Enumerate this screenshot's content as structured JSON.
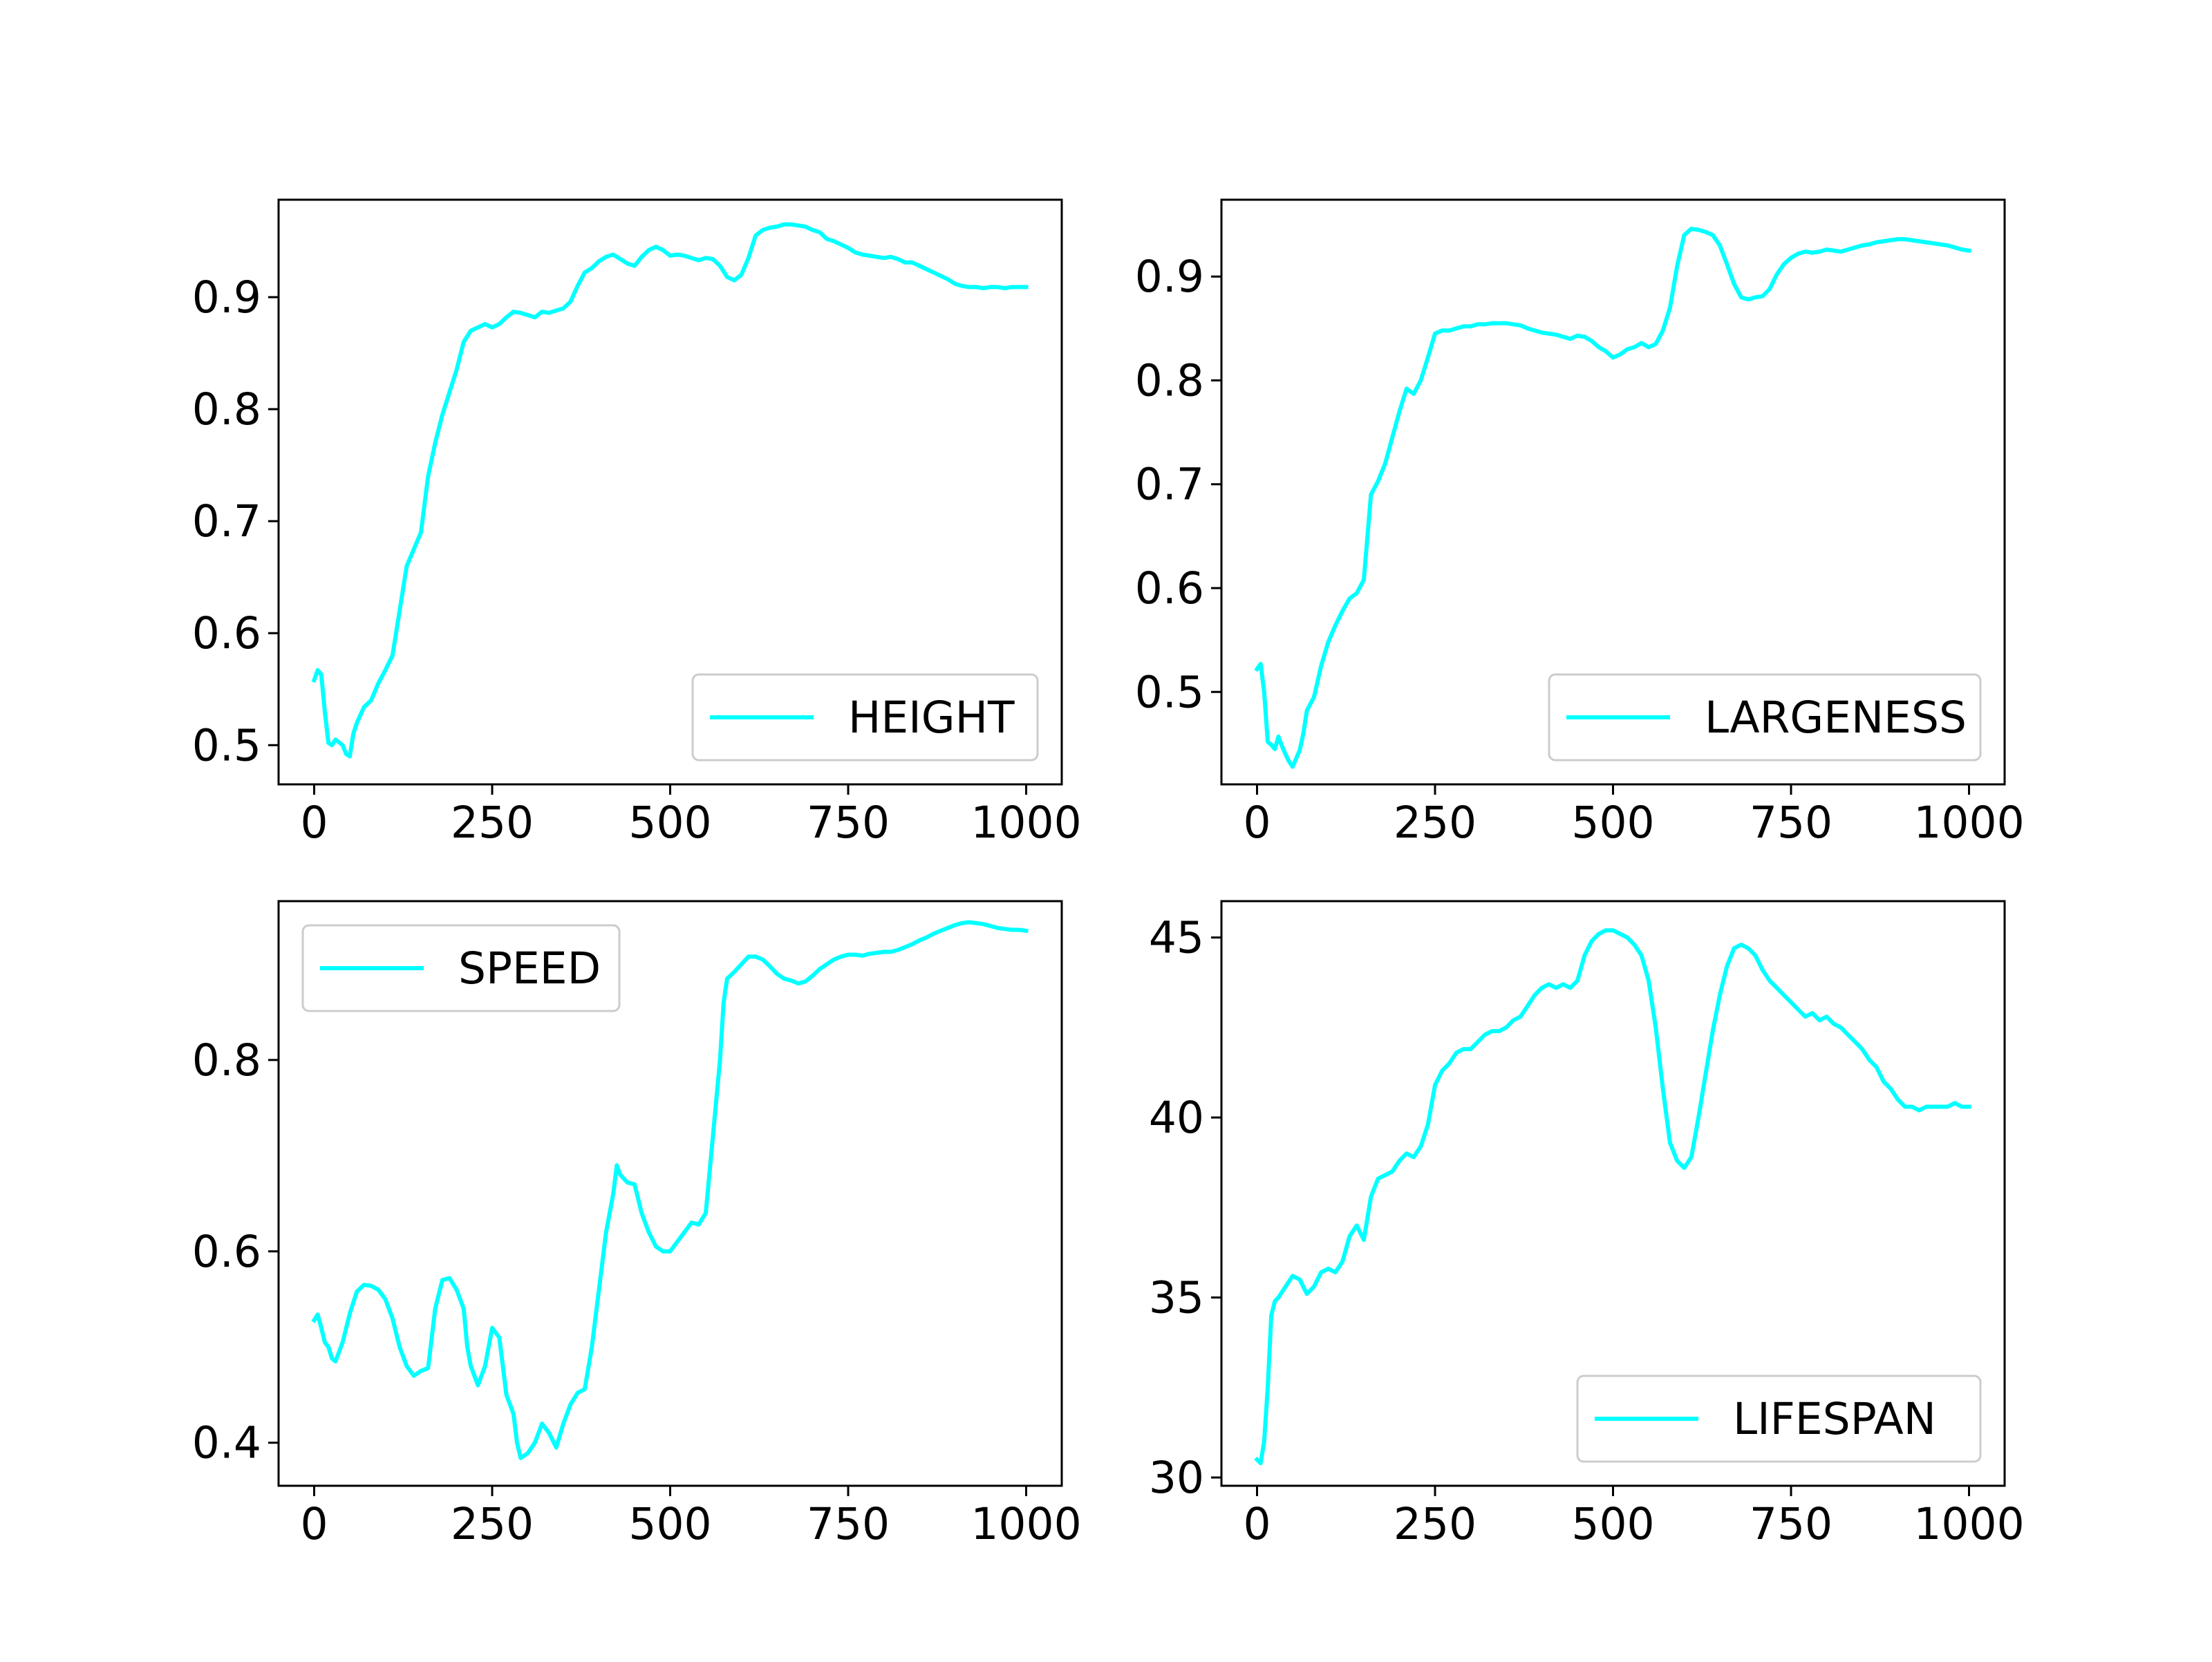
{
  "figure": {
    "background": "#ffffff",
    "line_color": "#00ffff"
  },
  "chart_data": [
    {
      "type": "line",
      "title": "",
      "xlabel": "",
      "ylabel": "",
      "xlim": [
        -50,
        1050
      ],
      "ylim": [
        0.465,
        0.987
      ],
      "xticks": [
        0,
        250,
        500,
        750,
        1000
      ],
      "xtick_labels": [
        "0",
        "250",
        "500",
        "750",
        "1000"
      ],
      "yticks": [
        0.5,
        0.6,
        0.7,
        0.8,
        0.9
      ],
      "ytick_labels": [
        "0.5",
        "0.6",
        "0.7",
        "0.8",
        "0.9"
      ],
      "grid": false,
      "legend": "lower right",
      "series": [
        {
          "name": "HEIGHT",
          "color": "#00ffff",
          "x": [
            0,
            5,
            10,
            15,
            20,
            25,
            30,
            40,
            45,
            50,
            55,
            60,
            70,
            80,
            90,
            100,
            110,
            120,
            130,
            140,
            150,
            160,
            170,
            180,
            190,
            200,
            210,
            220,
            230,
            240,
            250,
            260,
            270,
            280,
            290,
            300,
            310,
            320,
            330,
            340,
            350,
            360,
            370,
            380,
            390,
            400,
            410,
            420,
            430,
            440,
            450,
            460,
            470,
            480,
            490,
            500,
            510,
            520,
            530,
            540,
            550,
            560,
            570,
            580,
            590,
            600,
            610,
            620,
            630,
            640,
            650,
            660,
            670,
            680,
            690,
            700,
            710,
            720,
            730,
            740,
            750,
            760,
            770,
            780,
            790,
            800,
            810,
            820,
            830,
            840,
            850,
            860,
            870,
            880,
            890,
            900,
            910,
            920,
            930,
            940,
            950,
            960,
            970,
            980,
            990,
            1000
          ],
          "y": [
            0.558,
            0.567,
            0.563,
            0.53,
            0.502,
            0.5,
            0.505,
            0.5,
            0.492,
            0.49,
            0.51,
            0.52,
            0.534,
            0.54,
            0.555,
            0.567,
            0.58,
            0.62,
            0.66,
            0.675,
            0.69,
            0.74,
            0.77,
            0.795,
            0.815,
            0.835,
            0.86,
            0.87,
            0.873,
            0.876,
            0.873,
            0.876,
            0.882,
            0.887,
            0.886,
            0.884,
            0.882,
            0.887,
            0.886,
            0.888,
            0.89,
            0.896,
            0.91,
            0.922,
            0.926,
            0.932,
            0.936,
            0.938,
            0.934,
            0.93,
            0.928,
            0.936,
            0.942,
            0.945,
            0.942,
            0.937,
            0.938,
            0.937,
            0.935,
            0.933,
            0.935,
            0.934,
            0.928,
            0.918,
            0.915,
            0.92,
            0.935,
            0.955,
            0.96,
            0.962,
            0.963,
            0.965,
            0.965,
            0.964,
            0.963,
            0.96,
            0.958,
            0.952,
            0.95,
            0.947,
            0.944,
            0.94,
            0.938,
            0.937,
            0.936,
            0.935,
            0.936,
            0.934,
            0.931,
            0.931,
            0.928,
            0.925,
            0.922,
            0.919,
            0.916,
            0.912,
            0.91,
            0.909,
            0.909,
            0.908,
            0.909,
            0.909,
            0.908,
            0.909,
            0.909,
            0.909
          ]
        }
      ]
    },
    {
      "type": "line",
      "title": "",
      "xlabel": "",
      "ylabel": "",
      "xlim": [
        -50,
        1050
      ],
      "ylim": [
        0.411,
        0.974
      ],
      "xticks": [
        0,
        250,
        500,
        750,
        1000
      ],
      "xtick_labels": [
        "0",
        "250",
        "500",
        "750",
        "1000"
      ],
      "yticks": [
        0.5,
        0.6,
        0.7,
        0.8,
        0.9
      ],
      "ytick_labels": [
        "0.5",
        "0.6",
        "0.7",
        "0.8",
        "0.9"
      ],
      "grid": false,
      "legend": "lower right",
      "series": [
        {
          "name": "LARGENESS",
          "color": "#00ffff",
          "x": [
            0,
            5,
            10,
            15,
            20,
            25,
            30,
            35,
            40,
            45,
            50,
            55,
            60,
            65,
            70,
            80,
            90,
            100,
            110,
            120,
            130,
            140,
            150,
            160,
            170,
            180,
            190,
            200,
            210,
            220,
            230,
            240,
            250,
            260,
            270,
            280,
            290,
            300,
            310,
            320,
            330,
            340,
            350,
            360,
            370,
            380,
            390,
            400,
            410,
            420,
            430,
            440,
            450,
            460,
            470,
            480,
            490,
            500,
            510,
            520,
            530,
            540,
            550,
            560,
            570,
            580,
            590,
            600,
            610,
            620,
            630,
            640,
            650,
            660,
            670,
            680,
            690,
            700,
            710,
            720,
            730,
            740,
            750,
            760,
            770,
            780,
            790,
            800,
            810,
            820,
            830,
            840,
            850,
            860,
            870,
            880,
            890,
            900,
            910,
            920,
            930,
            940,
            950,
            960,
            970,
            980,
            990,
            1000
          ],
          "y": [
            0.522,
            0.527,
            0.5,
            0.452,
            0.449,
            0.445,
            0.457,
            0.448,
            0.44,
            0.433,
            0.428,
            0.436,
            0.444,
            0.46,
            0.482,
            0.495,
            0.525,
            0.548,
            0.564,
            0.578,
            0.59,
            0.595,
            0.608,
            0.69,
            0.703,
            0.72,
            0.745,
            0.77,
            0.792,
            0.787,
            0.8,
            0.822,
            0.845,
            0.848,
            0.848,
            0.85,
            0.852,
            0.852,
            0.854,
            0.854,
            0.855,
            0.855,
            0.855,
            0.854,
            0.853,
            0.85,
            0.848,
            0.846,
            0.845,
            0.844,
            0.842,
            0.84,
            0.843,
            0.842,
            0.838,
            0.832,
            0.828,
            0.822,
            0.825,
            0.83,
            0.832,
            0.836,
            0.832,
            0.835,
            0.848,
            0.87,
            0.91,
            0.94,
            0.946,
            0.945,
            0.943,
            0.94,
            0.93,
            0.912,
            0.893,
            0.88,
            0.878,
            0.88,
            0.881,
            0.888,
            0.902,
            0.912,
            0.918,
            0.922,
            0.924,
            0.923,
            0.924,
            0.926,
            0.925,
            0.924,
            0.926,
            0.928,
            0.93,
            0.931,
            0.933,
            0.934,
            0.935,
            0.936,
            0.936,
            0.935,
            0.934,
            0.933,
            0.932,
            0.931,
            0.93,
            0.928,
            0.926,
            0.925
          ]
        }
      ]
    },
    {
      "type": "line",
      "title": "",
      "xlabel": "",
      "ylabel": "",
      "xlim": [
        -50,
        1050
      ],
      "ylim": [
        0.355,
        0.966
      ],
      "xticks": [
        0,
        250,
        500,
        750,
        1000
      ],
      "xtick_labels": [
        "0",
        "250",
        "500",
        "750",
        "1000"
      ],
      "yticks": [
        0.4,
        0.6,
        0.8
      ],
      "ytick_labels": [
        "0.4",
        "0.6",
        "0.8"
      ],
      "grid": false,
      "legend": "upper left",
      "series": [
        {
          "name": "SPEED",
          "color": "#00ffff",
          "x": [
            0,
            5,
            10,
            15,
            20,
            25,
            30,
            40,
            50,
            60,
            70,
            80,
            90,
            100,
            110,
            120,
            130,
            140,
            150,
            160,
            170,
            180,
            190,
            200,
            210,
            215,
            220,
            230,
            240,
            250,
            260,
            270,
            280,
            285,
            290,
            300,
            310,
            320,
            330,
            340,
            350,
            360,
            370,
            380,
            390,
            400,
            410,
            420,
            425,
            430,
            440,
            450,
            460,
            470,
            480,
            490,
            500,
            510,
            520,
            530,
            540,
            550,
            560,
            570,
            575,
            580,
            590,
            600,
            610,
            620,
            630,
            640,
            650,
            660,
            670,
            680,
            690,
            700,
            710,
            720,
            730,
            740,
            750,
            760,
            770,
            780,
            790,
            800,
            810,
            820,
            830,
            840,
            850,
            860,
            870,
            880,
            890,
            900,
            910,
            920,
            930,
            940,
            950,
            960,
            970,
            980,
            990,
            1000
          ],
          "y": [
            0.528,
            0.534,
            0.52,
            0.505,
            0.5,
            0.488,
            0.485,
            0.505,
            0.535,
            0.558,
            0.565,
            0.564,
            0.56,
            0.55,
            0.53,
            0.5,
            0.48,
            0.47,
            0.475,
            0.478,
            0.54,
            0.57,
            0.572,
            0.56,
            0.54,
            0.5,
            0.48,
            0.46,
            0.48,
            0.52,
            0.51,
            0.45,
            0.43,
            0.4,
            0.384,
            0.389,
            0.4,
            0.42,
            0.41,
            0.395,
            0.42,
            0.44,
            0.452,
            0.456,
            0.5,
            0.56,
            0.62,
            0.66,
            0.69,
            0.68,
            0.672,
            0.67,
            0.64,
            0.62,
            0.605,
            0.6,
            0.6,
            0.61,
            0.62,
            0.63,
            0.628,
            0.64,
            0.72,
            0.8,
            0.86,
            0.885,
            0.892,
            0.9,
            0.908,
            0.908,
            0.905,
            0.898,
            0.89,
            0.885,
            0.883,
            0.88,
            0.882,
            0.888,
            0.895,
            0.9,
            0.905,
            0.908,
            0.91,
            0.91,
            0.909,
            0.911,
            0.912,
            0.913,
            0.913,
            0.915,
            0.918,
            0.921,
            0.925,
            0.928,
            0.932,
            0.935,
            0.938,
            0.941,
            0.943,
            0.944,
            0.943,
            0.942,
            0.94,
            0.938,
            0.937,
            0.936,
            0.936,
            0.935
          ]
        }
      ]
    },
    {
      "type": "line",
      "title": "",
      "xlabel": "",
      "ylabel": "",
      "xlim": [
        -50,
        1050
      ],
      "ylim": [
        29.77,
        46.01
      ],
      "xticks": [
        0,
        250,
        500,
        750,
        1000
      ],
      "xtick_labels": [
        "0",
        "250",
        "500",
        "750",
        "1000"
      ],
      "yticks": [
        30,
        35,
        40,
        45
      ],
      "ytick_labels": [
        "30",
        "35",
        "40",
        "45"
      ],
      "grid": false,
      "legend": "lower right",
      "series": [
        {
          "name": "LIFESPAN",
          "color": "#00ffff",
          "x": [
            0,
            5,
            10,
            15,
            20,
            25,
            30,
            40,
            50,
            60,
            70,
            80,
            90,
            100,
            110,
            120,
            130,
            140,
            150,
            160,
            170,
            180,
            190,
            200,
            210,
            220,
            230,
            240,
            250,
            260,
            270,
            280,
            290,
            300,
            310,
            320,
            330,
            340,
            350,
            360,
            370,
            380,
            390,
            400,
            410,
            420,
            430,
            440,
            450,
            460,
            470,
            480,
            490,
            500,
            510,
            520,
            530,
            540,
            550,
            560,
            570,
            580,
            590,
            600,
            610,
            620,
            630,
            640,
            650,
            660,
            670,
            680,
            690,
            700,
            710,
            720,
            730,
            740,
            750,
            760,
            770,
            780,
            790,
            800,
            810,
            820,
            830,
            840,
            850,
            860,
            870,
            880,
            890,
            900,
            910,
            920,
            930,
            940,
            950,
            960,
            970,
            980,
            990,
            1000
          ],
          "y": [
            30.5,
            30.4,
            31.0,
            32.5,
            34.5,
            34.9,
            35.0,
            35.3,
            35.6,
            35.5,
            35.1,
            35.3,
            35.7,
            35.8,
            35.7,
            36.0,
            36.7,
            37.0,
            36.6,
            37.8,
            38.3,
            38.4,
            38.5,
            38.8,
            39.0,
            38.9,
            39.2,
            39.8,
            40.9,
            41.3,
            41.5,
            41.8,
            41.9,
            41.9,
            42.1,
            42.3,
            42.4,
            42.4,
            42.5,
            42.7,
            42.8,
            43.1,
            43.4,
            43.6,
            43.7,
            43.6,
            43.7,
            43.6,
            43.8,
            44.5,
            44.9,
            45.1,
            45.2,
            45.2,
            45.1,
            45.0,
            44.8,
            44.5,
            43.8,
            42.5,
            40.8,
            39.3,
            38.8,
            38.6,
            38.9,
            40.0,
            41.2,
            42.4,
            43.4,
            44.2,
            44.7,
            44.8,
            44.7,
            44.5,
            44.1,
            43.8,
            43.6,
            43.4,
            43.2,
            43.0,
            42.8,
            42.9,
            42.7,
            42.8,
            42.6,
            42.5,
            42.3,
            42.1,
            41.9,
            41.6,
            41.4,
            41.0,
            40.8,
            40.5,
            40.3,
            40.3,
            40.2,
            40.3,
            40.3,
            40.3,
            40.3,
            40.4,
            40.3,
            40.3
          ]
        }
      ]
    }
  ]
}
